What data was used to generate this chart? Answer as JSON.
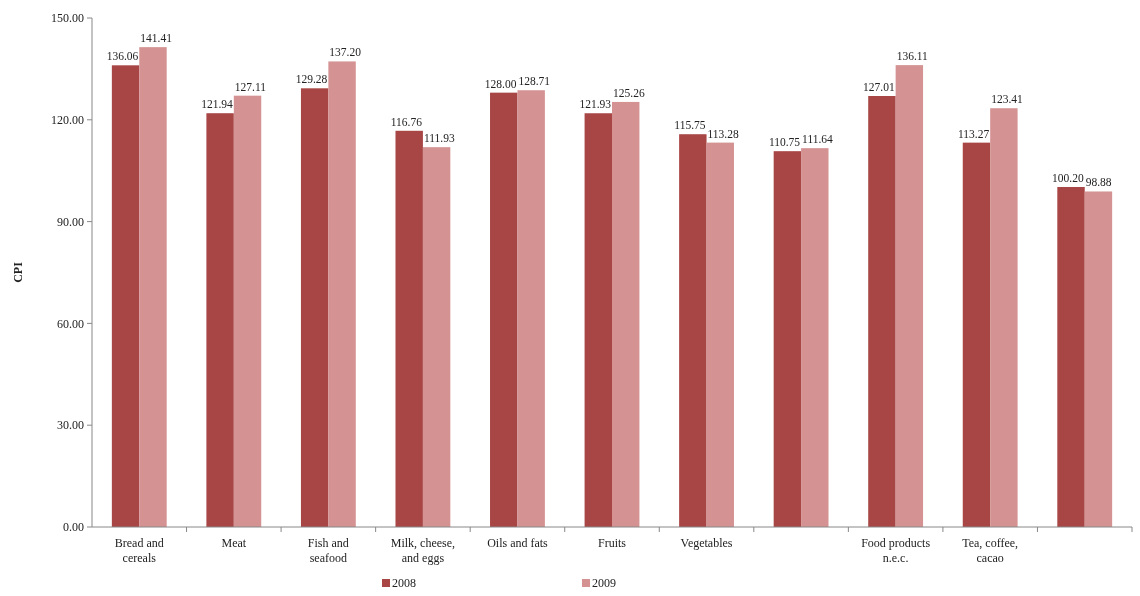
{
  "chart_data": {
    "type": "bar",
    "ylabel": "CPI",
    "categories": [
      "Bread and cereals",
      "Meat",
      "Fish and seafood",
      "Milk, cheese, and eggs",
      "Oils and fats",
      "Fruits",
      "Vegetables",
      null,
      "Food products n.e.c.",
      "Tea, coffee, cacao",
      null
    ],
    "series": [
      {
        "name": "2008",
        "color": "#a84545",
        "values": [
          136.06,
          121.94,
          129.28,
          116.76,
          128.0,
          121.93,
          115.75,
          110.75,
          127.01,
          113.27,
          100.2
        ],
        "value_labels": [
          "136.06",
          "121.94",
          "129.28",
          "116.76",
          "128.00",
          "121.93",
          "115.75",
          "110.75",
          "127.01",
          "113.27",
          "100.20"
        ]
      },
      {
        "name": "2009",
        "color": "#d49292",
        "values": [
          141.41,
          127.11,
          137.2,
          111.93,
          128.71,
          125.26,
          113.28,
          111.64,
          136.11,
          123.41,
          98.88
        ],
        "value_labels": [
          "141.41",
          "127.11",
          "137.20",
          "111.93",
          "128.71",
          "125.26",
          "113.28",
          "111.64",
          "136.11",
          "123.41",
          "98.88"
        ]
      }
    ],
    "ylim": [
      0,
      150
    ],
    "yticks": [
      {
        "value": 0,
        "label": "0.00"
      },
      {
        "value": 30,
        "label": "30.00"
      },
      {
        "value": 60,
        "label": "60.00"
      },
      {
        "value": 90,
        "label": "90.00"
      },
      {
        "value": 120,
        "label": "120.00"
      },
      {
        "value": 150,
        "label": "150.00"
      }
    ],
    "grid": false,
    "legend": "bottom"
  }
}
